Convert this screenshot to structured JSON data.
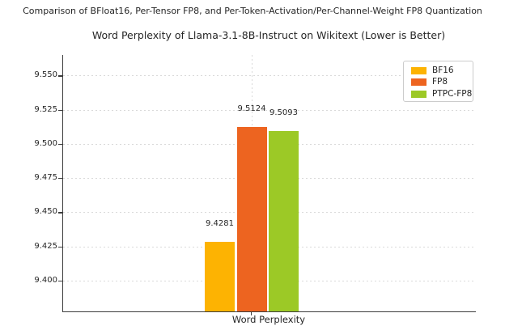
{
  "figure": {
    "suptitle": "Comparison of BFloat16, Per-Tensor FP8, and Per-Token-Activation/Per-Channel-Weight FP8 Quantization"
  },
  "chart_data": {
    "type": "bar",
    "title": "Word Perplexity of Llama-3.1-8B-Instruct on Wikitext (Lower is Better)",
    "xlabel": "Word Perplexity",
    "ylabel": "",
    "categories": [
      "Word Perplexity"
    ],
    "series": [
      {
        "name": "BF16",
        "values": [
          9.4281
        ],
        "color": "#fdb302"
      },
      {
        "name": "FP8",
        "values": [
          9.5124
        ],
        "color": "#ed6420"
      },
      {
        "name": "PTPC-FP8",
        "values": [
          9.5093
        ],
        "color": "#9cc926"
      }
    ],
    "bar_value_labels": [
      "9.4281",
      "9.5124",
      "9.5093"
    ],
    "ylim": [
      9.3775,
      9.565
    ],
    "ytick_values": [
      9.4,
      9.425,
      9.45,
      9.475,
      9.5,
      9.525,
      9.55
    ],
    "ytick_labels": [
      "9.400",
      "9.425",
      "9.450",
      "9.475",
      "9.500",
      "9.525",
      "9.550"
    ],
    "grid": true,
    "grid_style": "dashed",
    "legend": {
      "position": "upper right",
      "entries": [
        "BF16",
        "FP8",
        "PTPC-FP8"
      ]
    }
  },
  "colors": {
    "bf16": "#fdb302",
    "fp8": "#ed6420",
    "ptpc_fp8": "#9cc926",
    "grid": "#d9d9d9",
    "axis": "#3c3c3c",
    "text": "#262626",
    "legend_border": "#cccccc",
    "background": "#ffffff"
  }
}
